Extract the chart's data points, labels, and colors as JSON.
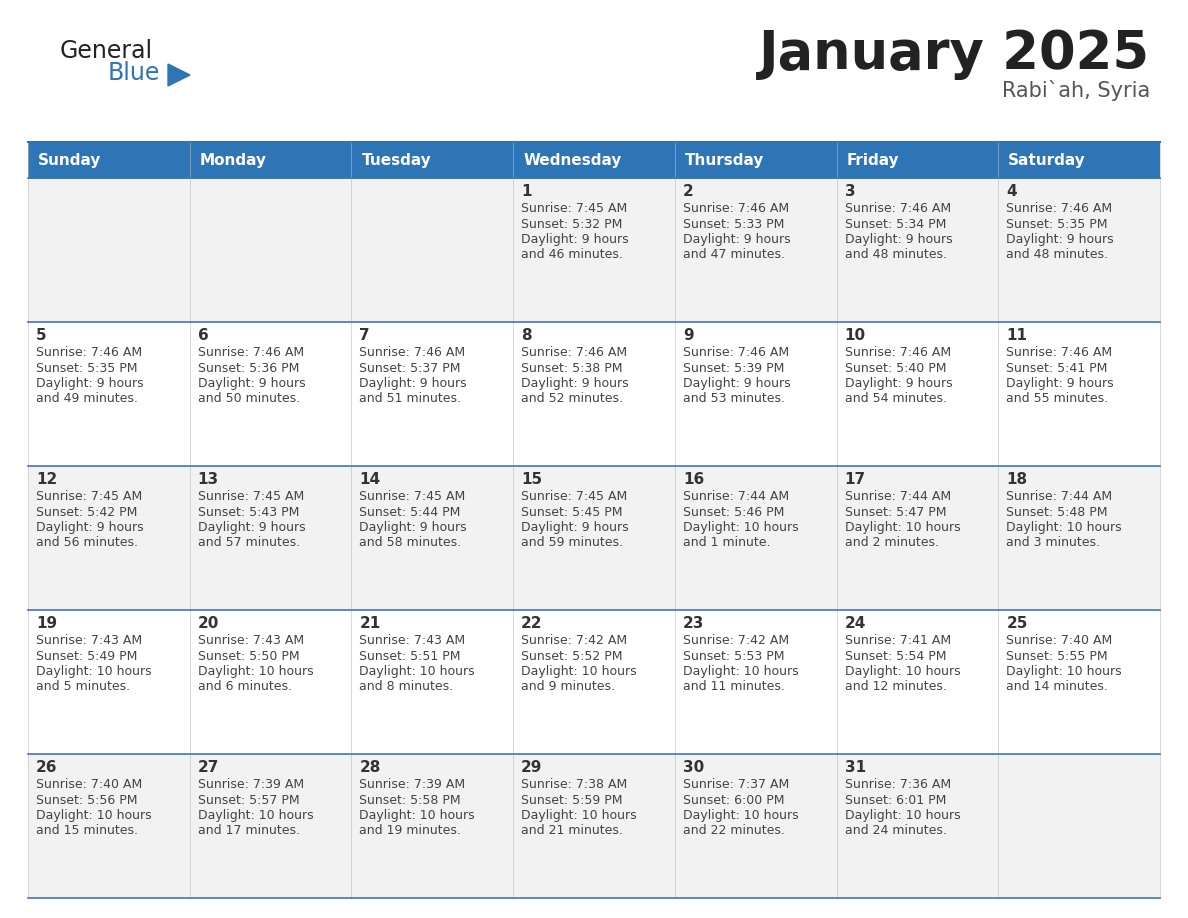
{
  "title": "January 2025",
  "subtitle": "Rabi`ah, Syria",
  "days_of_week": [
    "Sunday",
    "Monday",
    "Tuesday",
    "Wednesday",
    "Thursday",
    "Friday",
    "Saturday"
  ],
  "header_bg": "#2E75B6",
  "header_text_color": "#FFFFFF",
  "cell_bg_odd": "#F2F2F2",
  "cell_bg_even": "#FFFFFF",
  "border_color": "#2E75B6",
  "row_border_color": "#4472C4",
  "text_color": "#333333",
  "day_num_color": "#333333",
  "calendar_data": [
    [
      null,
      null,
      null,
      {
        "day": 1,
        "sunrise": "7:45 AM",
        "sunset": "5:32 PM",
        "daylight_line1": "Daylight: 9 hours",
        "daylight_line2": "and 46 minutes."
      },
      {
        "day": 2,
        "sunrise": "7:46 AM",
        "sunset": "5:33 PM",
        "daylight_line1": "Daylight: 9 hours",
        "daylight_line2": "and 47 minutes."
      },
      {
        "day": 3,
        "sunrise": "7:46 AM",
        "sunset": "5:34 PM",
        "daylight_line1": "Daylight: 9 hours",
        "daylight_line2": "and 48 minutes."
      },
      {
        "day": 4,
        "sunrise": "7:46 AM",
        "sunset": "5:35 PM",
        "daylight_line1": "Daylight: 9 hours",
        "daylight_line2": "and 48 minutes."
      }
    ],
    [
      {
        "day": 5,
        "sunrise": "7:46 AM",
        "sunset": "5:35 PM",
        "daylight_line1": "Daylight: 9 hours",
        "daylight_line2": "and 49 minutes."
      },
      {
        "day": 6,
        "sunrise": "7:46 AM",
        "sunset": "5:36 PM",
        "daylight_line1": "Daylight: 9 hours",
        "daylight_line2": "and 50 minutes."
      },
      {
        "day": 7,
        "sunrise": "7:46 AM",
        "sunset": "5:37 PM",
        "daylight_line1": "Daylight: 9 hours",
        "daylight_line2": "and 51 minutes."
      },
      {
        "day": 8,
        "sunrise": "7:46 AM",
        "sunset": "5:38 PM",
        "daylight_line1": "Daylight: 9 hours",
        "daylight_line2": "and 52 minutes."
      },
      {
        "day": 9,
        "sunrise": "7:46 AM",
        "sunset": "5:39 PM",
        "daylight_line1": "Daylight: 9 hours",
        "daylight_line2": "and 53 minutes."
      },
      {
        "day": 10,
        "sunrise": "7:46 AM",
        "sunset": "5:40 PM",
        "daylight_line1": "Daylight: 9 hours",
        "daylight_line2": "and 54 minutes."
      },
      {
        "day": 11,
        "sunrise": "7:46 AM",
        "sunset": "5:41 PM",
        "daylight_line1": "Daylight: 9 hours",
        "daylight_line2": "and 55 minutes."
      }
    ],
    [
      {
        "day": 12,
        "sunrise": "7:45 AM",
        "sunset": "5:42 PM",
        "daylight_line1": "Daylight: 9 hours",
        "daylight_line2": "and 56 minutes."
      },
      {
        "day": 13,
        "sunrise": "7:45 AM",
        "sunset": "5:43 PM",
        "daylight_line1": "Daylight: 9 hours",
        "daylight_line2": "and 57 minutes."
      },
      {
        "day": 14,
        "sunrise": "7:45 AM",
        "sunset": "5:44 PM",
        "daylight_line1": "Daylight: 9 hours",
        "daylight_line2": "and 58 minutes."
      },
      {
        "day": 15,
        "sunrise": "7:45 AM",
        "sunset": "5:45 PM",
        "daylight_line1": "Daylight: 9 hours",
        "daylight_line2": "and 59 minutes."
      },
      {
        "day": 16,
        "sunrise": "7:44 AM",
        "sunset": "5:46 PM",
        "daylight_line1": "Daylight: 10 hours",
        "daylight_line2": "and 1 minute."
      },
      {
        "day": 17,
        "sunrise": "7:44 AM",
        "sunset": "5:47 PM",
        "daylight_line1": "Daylight: 10 hours",
        "daylight_line2": "and 2 minutes."
      },
      {
        "day": 18,
        "sunrise": "7:44 AM",
        "sunset": "5:48 PM",
        "daylight_line1": "Daylight: 10 hours",
        "daylight_line2": "and 3 minutes."
      }
    ],
    [
      {
        "day": 19,
        "sunrise": "7:43 AM",
        "sunset": "5:49 PM",
        "daylight_line1": "Daylight: 10 hours",
        "daylight_line2": "and 5 minutes."
      },
      {
        "day": 20,
        "sunrise": "7:43 AM",
        "sunset": "5:50 PM",
        "daylight_line1": "Daylight: 10 hours",
        "daylight_line2": "and 6 minutes."
      },
      {
        "day": 21,
        "sunrise": "7:43 AM",
        "sunset": "5:51 PM",
        "daylight_line1": "Daylight: 10 hours",
        "daylight_line2": "and 8 minutes."
      },
      {
        "day": 22,
        "sunrise": "7:42 AM",
        "sunset": "5:52 PM",
        "daylight_line1": "Daylight: 10 hours",
        "daylight_line2": "and 9 minutes."
      },
      {
        "day": 23,
        "sunrise": "7:42 AM",
        "sunset": "5:53 PM",
        "daylight_line1": "Daylight: 10 hours",
        "daylight_line2": "and 11 minutes."
      },
      {
        "day": 24,
        "sunrise": "7:41 AM",
        "sunset": "5:54 PM",
        "daylight_line1": "Daylight: 10 hours",
        "daylight_line2": "and 12 minutes."
      },
      {
        "day": 25,
        "sunrise": "7:40 AM",
        "sunset": "5:55 PM",
        "daylight_line1": "Daylight: 10 hours",
        "daylight_line2": "and 14 minutes."
      }
    ],
    [
      {
        "day": 26,
        "sunrise": "7:40 AM",
        "sunset": "5:56 PM",
        "daylight_line1": "Daylight: 10 hours",
        "daylight_line2": "and 15 minutes."
      },
      {
        "day": 27,
        "sunrise": "7:39 AM",
        "sunset": "5:57 PM",
        "daylight_line1": "Daylight: 10 hours",
        "daylight_line2": "and 17 minutes."
      },
      {
        "day": 28,
        "sunrise": "7:39 AM",
        "sunset": "5:58 PM",
        "daylight_line1": "Daylight: 10 hours",
        "daylight_line2": "and 19 minutes."
      },
      {
        "day": 29,
        "sunrise": "7:38 AM",
        "sunset": "5:59 PM",
        "daylight_line1": "Daylight: 10 hours",
        "daylight_line2": "and 21 minutes."
      },
      {
        "day": 30,
        "sunrise": "7:37 AM",
        "sunset": "6:00 PM",
        "daylight_line1": "Daylight: 10 hours",
        "daylight_line2": "and 22 minutes."
      },
      {
        "day": 31,
        "sunrise": "7:36 AM",
        "sunset": "6:01 PM",
        "daylight_line1": "Daylight: 10 hours",
        "daylight_line2": "and 24 minutes."
      },
      null
    ]
  ],
  "logo_text_general": "General",
  "logo_text_blue": "Blue",
  "logo_color_general": "#222222",
  "logo_color_blue": "#2E75B6",
  "title_fontsize": 38,
  "subtitle_fontsize": 15,
  "header_fontsize": 11,
  "day_num_fontsize": 11,
  "cell_text_fontsize": 9
}
